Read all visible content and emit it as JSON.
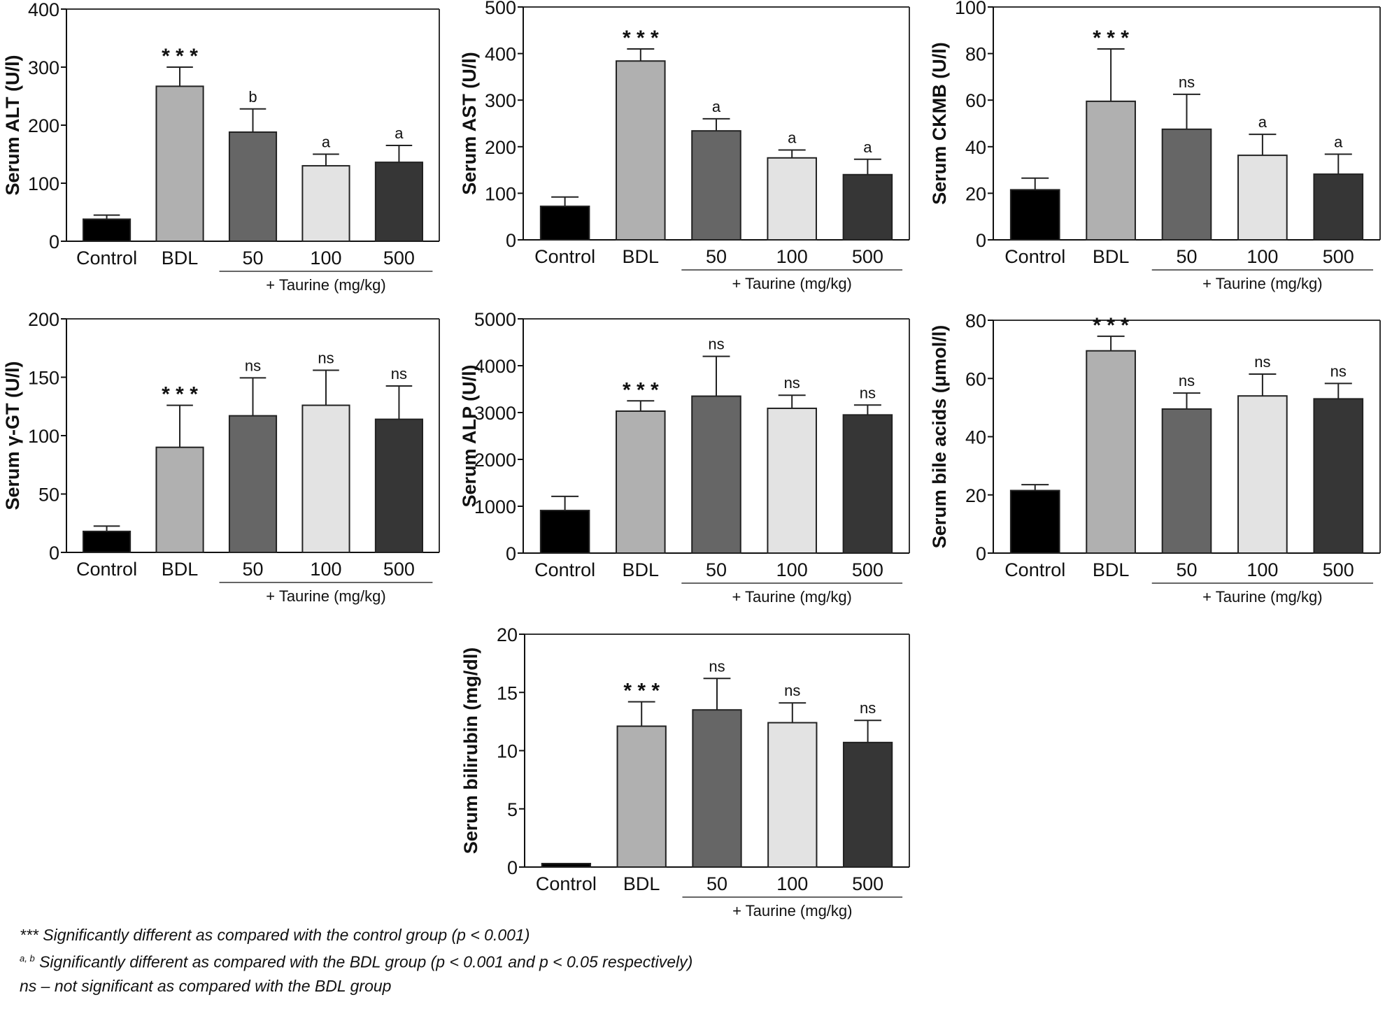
{
  "group_colors": {
    "Control": "#000000",
    "BDL": "#b0b0b0",
    "50": "#666666",
    "100": "#e3e3e3",
    "500": "#363636"
  },
  "chart_data": [
    {
      "type": "bar",
      "title": "",
      "ylabel": "Serum ALT (U/l)",
      "xlabel": "",
      "group_label": "+ Taurine (mg/kg)",
      "categories": [
        "Control",
        "BDL",
        "50",
        "100",
        "500"
      ],
      "values": [
        38,
        267,
        188,
        130,
        136
      ],
      "error": [
        7,
        33,
        40,
        20,
        29
      ],
      "significance": [
        "",
        "* * *",
        "b",
        "a",
        "a"
      ],
      "ylim": [
        0,
        400
      ],
      "yticks": [
        "0",
        "100",
        "200",
        "300",
        "400"
      ],
      "grid": false
    },
    {
      "type": "bar",
      "title": "",
      "ylabel": "Serum AST (U/l)",
      "xlabel": "",
      "group_label": "+ Taurine (mg/kg)",
      "categories": [
        "Control",
        "BDL",
        "50",
        "100",
        "500"
      ],
      "values": [
        72,
        384,
        234,
        176,
        140
      ],
      "error": [
        20,
        26,
        26,
        17,
        33
      ],
      "significance": [
        "",
        "* * *",
        "a",
        "a",
        "a"
      ],
      "ylim": [
        0,
        500
      ],
      "yticks": [
        "0",
        "100",
        "200",
        "300",
        "400",
        "500"
      ],
      "grid": false
    },
    {
      "type": "bar",
      "title": "",
      "ylabel": "Serum CKMB (U/l)",
      "xlabel": "",
      "group_label": "+ Taurine (mg/kg)",
      "categories": [
        "Control",
        "BDL",
        "50",
        "100",
        "500"
      ],
      "values": [
        21.5,
        59.5,
        47.5,
        36.3,
        28.2
      ],
      "error": [
        5,
        22.5,
        15,
        9,
        8.6
      ],
      "significance": [
        "",
        "* * *",
        "ns",
        "a",
        "a"
      ],
      "ylim": [
        0,
        100
      ],
      "yticks": [
        "0",
        "20",
        "40",
        "60",
        "80",
        "100"
      ],
      "grid": false
    },
    {
      "type": "bar",
      "title": "",
      "ylabel": "Serum γ-GT (U/l)",
      "xlabel": "",
      "group_label": "+ Taurine (mg/kg)",
      "categories": [
        "Control",
        "BDL",
        "50",
        "100",
        "500"
      ],
      "values": [
        18,
        90,
        117,
        126,
        114
      ],
      "error": [
        4.5,
        36,
        32.5,
        30,
        28.5
      ],
      "significance": [
        "",
        "* * *",
        "ns",
        "ns",
        "ns"
      ],
      "ylim": [
        0,
        200
      ],
      "yticks": [
        "0",
        "50",
        "100",
        "150",
        "200"
      ],
      "grid": false
    },
    {
      "type": "bar",
      "title": "",
      "ylabel": "Serum ALP (U/l)",
      "xlabel": "",
      "group_label": "+ Taurine (mg/kg)",
      "categories": [
        "Control",
        "BDL",
        "50",
        "100",
        "500"
      ],
      "values": [
        910,
        3030,
        3350,
        3090,
        2950
      ],
      "error": [
        300,
        220,
        850,
        280,
        210
      ],
      "significance": [
        "",
        "* * *",
        "ns",
        "ns",
        "ns"
      ],
      "ylim": [
        0,
        5000
      ],
      "yticks": [
        "0",
        "1000",
        "2000",
        "3000",
        "4000",
        "5000"
      ],
      "grid": false
    },
    {
      "type": "bar",
      "title": "",
      "ylabel": "Serum bile acids (μmol/l)",
      "xlabel": "",
      "group_label": "+ Taurine (mg/kg)",
      "categories": [
        "Control",
        "BDL",
        "50",
        "100",
        "500"
      ],
      "values": [
        21.5,
        69.5,
        49.5,
        54,
        53
      ],
      "error": [
        2,
        5,
        5.5,
        7.5,
        5.3
      ],
      "significance": [
        "",
        "* * *",
        "ns",
        "ns",
        "ns"
      ],
      "ylim": [
        0,
        80
      ],
      "yticks": [
        "0",
        "20",
        "40",
        "60",
        "80"
      ],
      "grid": false
    },
    {
      "type": "bar",
      "title": "",
      "ylabel": "Serum bilirubin (mg/dl)",
      "xlabel": "",
      "group_label": "+ Taurine (mg/kg)",
      "categories": [
        "Control",
        "BDL",
        "50",
        "100",
        "500"
      ],
      "values": [
        0.3,
        12.1,
        13.5,
        12.4,
        10.7
      ],
      "error": [
        0,
        2.1,
        2.7,
        1.7,
        1.9
      ],
      "significance": [
        "",
        "* * *",
        "ns",
        "ns",
        "ns"
      ],
      "ylim": [
        0,
        20
      ],
      "yticks": [
        "0",
        "5",
        "10",
        "15",
        "20"
      ],
      "grid": false
    }
  ],
  "footnotes": {
    "stars": "*** Significantly different as compared with the control group (p < 0.001)",
    "ab_marker": "a, b",
    "ab_text": " Significantly different as compared with the BDL group (p < 0.001 and p < 0.05 respectively)",
    "ns": "ns – not significant as compared with the BDL group"
  }
}
